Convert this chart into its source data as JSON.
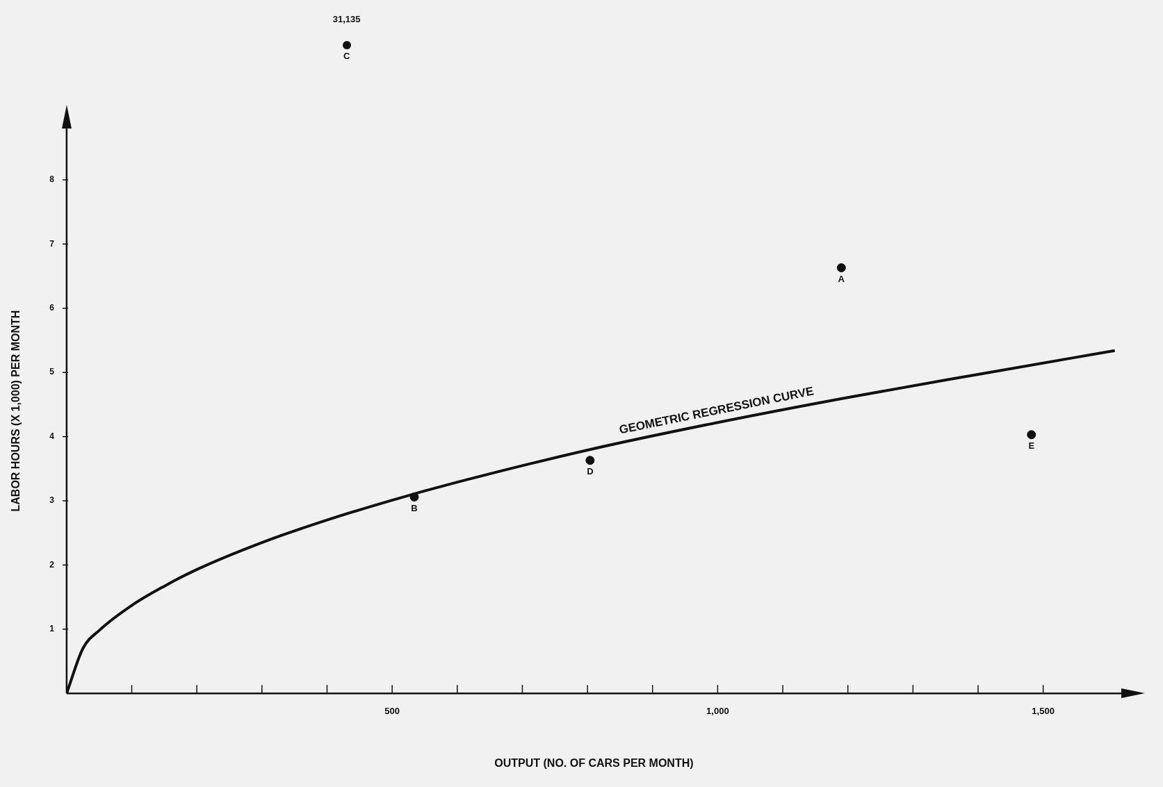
{
  "chart_data": {
    "type": "scatter",
    "xlabel": "OUTPUT (NO. OF CARS PER MONTH)",
    "ylabel": "LABOR HOURS (X 1,000) PER MONTH",
    "series": [
      {
        "color": "#111111",
        "marker": "circle",
        "x": [
          1190,
          534,
          null,
          804,
          1482
        ],
        "values": [
          6.63,
          3.06,
          null,
          3.63,
          4.03
        ]
      },
      {
        "type": "line",
        "marker": "none",
        "name": "GEOMETRIC REGRESSION CURVE",
        "color": "#111111",
        "x": [
          0,
          25,
          50,
          100,
          150,
          200,
          300,
          400,
          500,
          600,
          800,
          1000,
          1200,
          1400,
          1610
        ],
        "values": [
          0,
          0.7,
          0.98,
          1.37,
          1.67,
          1.93,
          2.35,
          2.7,
          3.01,
          3.29,
          3.79,
          4.22,
          4.61,
          4.97,
          5.34
        ]
      }
    ],
    "xlim": [
      0,
      1620
    ],
    "ylim": [
      0,
      8.8
    ],
    "xticks": [
      {
        "value": 100,
        "label": null
      },
      {
        "value": 200,
        "label": null
      },
      {
        "value": 300,
        "label": null
      },
      {
        "value": 400,
        "label": null
      },
      {
        "value": 500,
        "label": "500"
      },
      {
        "value": 600,
        "label": null
      },
      {
        "value": 700,
        "label": null
      },
      {
        "value": 800,
        "label": null
      },
      {
        "value": 900,
        "label": null
      },
      {
        "value": 1000,
        "label": "1,000"
      },
      {
        "value": 1100,
        "label": null
      },
      {
        "value": 1200,
        "label": null
      },
      {
        "value": 1300,
        "label": null
      },
      {
        "value": 1400,
        "label": null
      },
      {
        "value": 1500,
        "label": "1,500"
      }
    ],
    "yticks": [
      1,
      2,
      3,
      4,
      5,
      6,
      7,
      8
    ],
    "annotations": [
      {
        "text": "A",
        "x": 1190,
        "y": 6.63
      },
      {
        "text": "B",
        "x": 534,
        "y": 3.06
      },
      {
        "text": "D",
        "x": 804,
        "y": 3.63
      },
      {
        "text": "E",
        "x": 1482,
        "y": 4.03
      },
      "C",
      "31,135"
    ],
    "grid": false,
    "legend": false,
    "line_style": "solid"
  }
}
